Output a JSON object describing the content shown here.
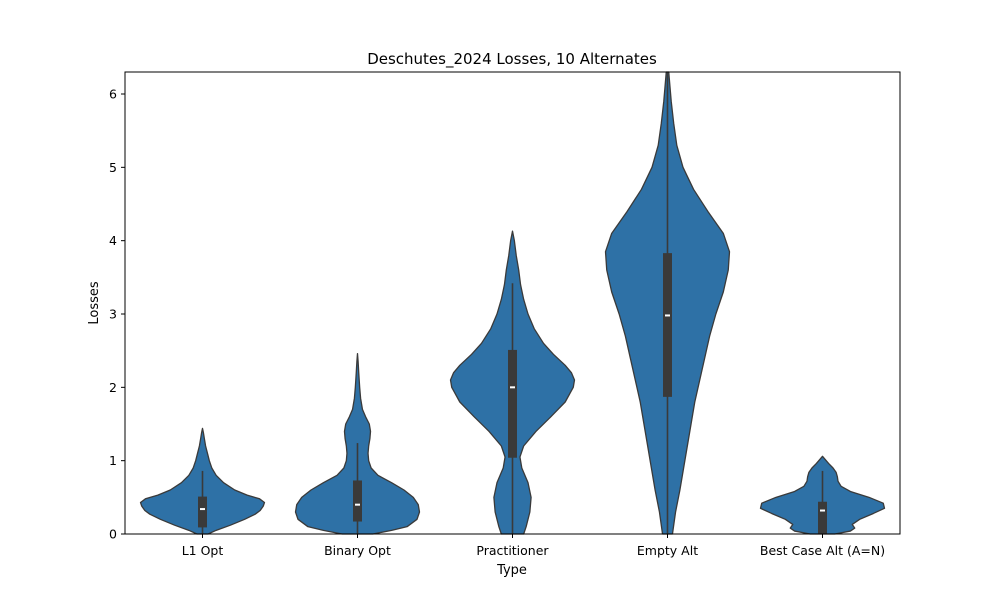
{
  "chart_data": {
    "type": "violin",
    "title": "Deschutes_2024 Losses, 10 Alternates",
    "xlabel": "Type",
    "ylabel": "Losses",
    "ylim": [
      0,
      6.3
    ],
    "yticks": [
      "0",
      "1",
      "2",
      "3",
      "4",
      "5",
      "6"
    ],
    "grid": false,
    "color": "#2e71a6",
    "edge_color": "#3a3a3a",
    "categories": [
      "L1 Opt",
      "Binary Opt",
      "Practitioner",
      "Empty Alt",
      "Best Case Alt (A=N)"
    ],
    "series": [
      {
        "category": "L1 Opt",
        "median": 0.34,
        "q1": 0.09,
        "q3": 0.51,
        "whisker_low": 0.0,
        "whisker_high": 0.86,
        "density": [
          [
            0.0,
            0.09
          ],
          [
            0.05,
            0.22
          ],
          [
            0.12,
            0.45
          ],
          [
            0.2,
            0.68
          ],
          [
            0.27,
            0.85
          ],
          [
            0.32,
            0.93
          ],
          [
            0.38,
            0.98
          ],
          [
            0.43,
            1.0
          ],
          [
            0.48,
            0.92
          ],
          [
            0.53,
            0.72
          ],
          [
            0.6,
            0.52
          ],
          [
            0.7,
            0.34
          ],
          [
            0.8,
            0.22
          ],
          [
            0.9,
            0.15
          ],
          [
            1.0,
            0.11
          ],
          [
            1.1,
            0.08
          ],
          [
            1.2,
            0.05
          ],
          [
            1.3,
            0.03
          ],
          [
            1.38,
            0.015
          ],
          [
            1.44,
            0.0
          ]
        ]
      },
      {
        "category": "Binary Opt",
        "median": 0.4,
        "q1": 0.17,
        "q3": 0.73,
        "whisker_low": 0.0,
        "whisker_high": 1.24,
        "density": [
          [
            0.0,
            0.25
          ],
          [
            0.05,
            0.55
          ],
          [
            0.1,
            0.8
          ],
          [
            0.2,
            0.96
          ],
          [
            0.3,
            1.0
          ],
          [
            0.4,
            0.98
          ],
          [
            0.5,
            0.9
          ],
          [
            0.6,
            0.75
          ],
          [
            0.7,
            0.55
          ],
          [
            0.8,
            0.33
          ],
          [
            0.9,
            0.22
          ],
          [
            1.0,
            0.18
          ],
          [
            1.1,
            0.17
          ],
          [
            1.2,
            0.18
          ],
          [
            1.3,
            0.2
          ],
          [
            1.4,
            0.21
          ],
          [
            1.5,
            0.19
          ],
          [
            1.6,
            0.13
          ],
          [
            1.7,
            0.08
          ],
          [
            1.85,
            0.05
          ],
          [
            2.0,
            0.035
          ],
          [
            2.2,
            0.02
          ],
          [
            2.35,
            0.01
          ],
          [
            2.46,
            0.0
          ]
        ]
      },
      {
        "category": "Practitioner",
        "median": 2.0,
        "q1": 1.04,
        "q3": 2.51,
        "whisker_low": 0.0,
        "whisker_high": 3.42,
        "density": [
          [
            0.0,
            0.18
          ],
          [
            0.1,
            0.22
          ],
          [
            0.3,
            0.28
          ],
          [
            0.5,
            0.3
          ],
          [
            0.7,
            0.25
          ],
          [
            0.9,
            0.15
          ],
          [
            1.05,
            0.12
          ],
          [
            1.2,
            0.18
          ],
          [
            1.4,
            0.38
          ],
          [
            1.6,
            0.62
          ],
          [
            1.8,
            0.85
          ],
          [
            2.0,
            0.98
          ],
          [
            2.1,
            1.0
          ],
          [
            2.2,
            0.95
          ],
          [
            2.3,
            0.85
          ],
          [
            2.45,
            0.66
          ],
          [
            2.6,
            0.5
          ],
          [
            2.8,
            0.35
          ],
          [
            3.0,
            0.25
          ],
          [
            3.2,
            0.18
          ],
          [
            3.4,
            0.13
          ],
          [
            3.6,
            0.1
          ],
          [
            3.8,
            0.06
          ],
          [
            4.0,
            0.03
          ],
          [
            4.13,
            0.0
          ]
        ]
      },
      {
        "category": "Empty Alt",
        "median": 2.98,
        "q1": 1.87,
        "q3": 3.83,
        "whisker_low": 0.0,
        "whisker_high": 6.3,
        "density": [
          [
            0.0,
            0.08
          ],
          [
            0.3,
            0.13
          ],
          [
            0.6,
            0.2
          ],
          [
            0.9,
            0.26
          ],
          [
            1.2,
            0.32
          ],
          [
            1.5,
            0.38
          ],
          [
            1.8,
            0.44
          ],
          [
            2.1,
            0.52
          ],
          [
            2.4,
            0.6
          ],
          [
            2.7,
            0.68
          ],
          [
            3.0,
            0.78
          ],
          [
            3.3,
            0.9
          ],
          [
            3.6,
            0.98
          ],
          [
            3.85,
            1.0
          ],
          [
            4.1,
            0.9
          ],
          [
            4.4,
            0.65
          ],
          [
            4.7,
            0.42
          ],
          [
            5.0,
            0.25
          ],
          [
            5.3,
            0.15
          ],
          [
            5.6,
            0.1
          ],
          [
            5.9,
            0.06
          ],
          [
            6.1,
            0.04
          ],
          [
            6.3,
            0.02
          ]
        ]
      },
      {
        "category": "Best Case Alt (A=N)",
        "median": 0.32,
        "q1": 0.0,
        "q3": 0.44,
        "whisker_low": 0.0,
        "whisker_high": 0.86,
        "density": [
          [
            0.0,
            0.2
          ],
          [
            0.04,
            0.45
          ],
          [
            0.08,
            0.52
          ],
          [
            0.13,
            0.48
          ],
          [
            0.2,
            0.6
          ],
          [
            0.28,
            0.82
          ],
          [
            0.35,
            1.0
          ],
          [
            0.42,
            0.98
          ],
          [
            0.5,
            0.75
          ],
          [
            0.58,
            0.45
          ],
          [
            0.65,
            0.3
          ],
          [
            0.72,
            0.25
          ],
          [
            0.78,
            0.24
          ],
          [
            0.84,
            0.22
          ],
          [
            0.9,
            0.17
          ],
          [
            0.96,
            0.1
          ],
          [
            1.01,
            0.05
          ],
          [
            1.06,
            0.0
          ]
        ]
      }
    ]
  }
}
